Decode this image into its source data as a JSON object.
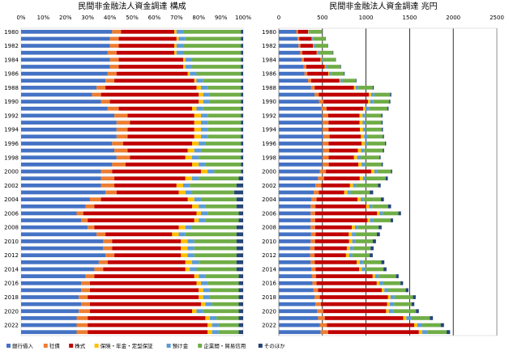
{
  "chart_data": [
    {
      "type": "bar",
      "orientation": "horizontal",
      "stacked": true,
      "percent": true,
      "title": "民間非金融法人資金調達 構成",
      "xlim": [
        0,
        100
      ],
      "xticks": [
        "0%",
        "10%",
        "20%",
        "30%",
        "40%",
        "50%",
        "60%",
        "70%",
        "80%",
        "90%",
        "100%"
      ],
      "grid": false,
      "legend": "bottom",
      "categories": [
        "1980",
        "1981",
        "1982",
        "1983",
        "1984",
        "1985",
        "1986",
        "1987",
        "1988",
        "1989",
        "1990",
        "1991",
        "1992",
        "1993",
        "1994",
        "1995",
        "1996",
        "1997",
        "1998",
        "1999",
        "2000",
        "2001",
        "2002",
        "2003",
        "2004",
        "2005",
        "2006",
        "2007",
        "2008",
        "2009",
        "2010",
        "2011",
        "2012",
        "2013",
        "2014",
        "2015",
        "2016",
        "2017",
        "2018",
        "2019",
        "2020",
        "2021",
        "2022",
        "2023"
      ],
      "category_labels": [
        "1980",
        "",
        "1982",
        "",
        "1984",
        "",
        "1986",
        "",
        "1988",
        "",
        "1990",
        "",
        "1992",
        "",
        "1994",
        "",
        "1996",
        "",
        "1998",
        "",
        "2000",
        "",
        "2002",
        "",
        "2004",
        "",
        "2006",
        "",
        "2008",
        "",
        "2010",
        "",
        "2012",
        "",
        "2014",
        "",
        "2016",
        "",
        "2018",
        "",
        "2020",
        "",
        "2022",
        ""
      ],
      "series": [
        {
          "name": "銀行借入",
          "values": [
            41,
            40,
            40,
            39,
            40,
            40,
            39,
            38,
            34,
            32,
            36,
            39,
            42,
            43,
            43,
            43,
            41,
            42,
            43,
            41,
            36,
            36,
            36,
            38,
            31,
            29,
            25,
            27,
            30,
            34,
            37,
            37,
            38,
            35,
            33,
            29,
            27,
            27,
            26,
            27,
            26,
            25,
            25,
            25
          ]
        },
        {
          "name": "社債",
          "values": [
            4,
            4,
            4,
            4,
            4,
            4,
            4,
            4,
            4,
            4,
            4,
            5,
            6,
            6,
            5,
            5,
            5,
            6,
            6,
            6,
            5,
            6,
            6,
            5,
            5,
            4,
            3,
            3,
            3,
            4,
            4,
            4,
            4,
            4,
            4,
            4,
            4,
            4,
            4,
            4,
            5,
            5,
            5,
            5
          ]
        },
        {
          "name": "株式",
          "values": [
            24,
            26,
            25,
            26,
            29,
            29,
            32,
            36,
            41,
            44,
            40,
            33,
            30,
            29,
            30,
            30,
            31,
            27,
            25,
            30,
            40,
            32,
            28,
            28,
            39,
            44,
            51,
            48,
            38,
            30,
            31,
            31,
            30,
            35,
            37,
            45,
            48,
            49,
            50,
            50,
            46,
            53,
            54,
            54
          ]
        },
        {
          "name": "保険・年金・定型保証",
          "values": [
            1,
            1,
            1,
            1,
            1,
            1,
            1,
            1,
            2,
            2,
            2,
            2,
            3,
            3,
            3,
            3,
            3,
            3,
            3,
            3,
            3,
            3,
            3,
            3,
            3,
            3,
            2,
            2,
            3,
            3,
            3,
            3,
            3,
            3,
            2,
            2,
            2,
            2,
            2,
            2,
            2,
            2,
            2,
            2
          ]
        },
        {
          "name": "預け金",
          "values": [
            3,
            3,
            3,
            3,
            3,
            3,
            3,
            3,
            3,
            3,
            3,
            3,
            3,
            3,
            3,
            3,
            3,
            3,
            3,
            3,
            3,
            3,
            3,
            3,
            3,
            3,
            3,
            3,
            3,
            3,
            3,
            3,
            3,
            3,
            3,
            3,
            3,
            3,
            3,
            3,
            3,
            3,
            3,
            3
          ]
        },
        {
          "name": "企業間・貿易信用",
          "values": [
            26,
            25,
            26,
            26,
            22,
            22,
            20,
            17,
            15,
            14,
            14,
            17,
            15,
            15,
            15,
            15,
            16,
            18,
            19,
            16,
            12,
            18,
            21,
            19,
            16,
            14,
            14,
            15,
            20,
            23,
            19,
            19,
            19,
            17,
            18,
            15,
            14,
            13,
            13,
            12,
            16,
            10,
            9,
            9
          ]
        },
        {
          "name": "そのほか",
          "values": [
            1,
            1,
            1,
            1,
            1,
            1,
            1,
            1,
            1,
            1,
            1,
            1,
            1,
            1,
            1,
            1,
            1,
            1,
            1,
            1,
            1,
            2,
            3,
            4,
            3,
            3,
            2,
            2,
            3,
            3,
            3,
            3,
            3,
            3,
            3,
            2,
            2,
            2,
            2,
            2,
            2,
            2,
            2,
            2
          ]
        }
      ]
    },
    {
      "type": "bar",
      "orientation": "horizontal",
      "stacked": true,
      "title": "民間非金融法人資金調達 兆円",
      "xlim": [
        0,
        2500
      ],
      "xticks": [
        "0",
        "500",
        "1000",
        "1500",
        "2000",
        "2500"
      ],
      "grid": true,
      "legend": "bottom",
      "categories": [
        "1980",
        "1981",
        "1982",
        "1983",
        "1984",
        "1985",
        "1986",
        "1987",
        "1988",
        "1989",
        "1990",
        "1991",
        "1992",
        "1993",
        "1994",
        "1995",
        "1996",
        "1997",
        "1998",
        "1999",
        "2000",
        "2001",
        "2002",
        "2003",
        "2004",
        "2005",
        "2006",
        "2007",
        "2008",
        "2009",
        "2010",
        "2011",
        "2012",
        "2013",
        "2014",
        "2015",
        "2016",
        "2017",
        "2018",
        "2019",
        "2020",
        "2021",
        "2022",
        "2023"
      ],
      "category_labels": [
        "1980",
        "",
        "1982",
        "",
        "1984",
        "",
        "1986",
        "",
        "1988",
        "",
        "1990",
        "",
        "1992",
        "",
        "1994",
        "",
        "1996",
        "",
        "1998",
        "",
        "2000",
        "",
        "2002",
        "",
        "2004",
        "",
        "2006",
        "",
        "2008",
        "",
        "2010",
        "",
        "2012",
        "",
        "2014",
        "",
        "2016",
        "",
        "2018",
        "",
        "2020",
        "",
        "2022",
        ""
      ],
      "series": [
        {
          "name": "銀行借入",
          "values": [
            200,
            215,
            225,
            245,
            260,
            285,
            295,
            335,
            370,
            410,
            460,
            490,
            500,
            500,
            500,
            510,
            500,
            505,
            500,
            500,
            470,
            450,
            420,
            400,
            375,
            365,
            365,
            365,
            365,
            370,
            365,
            360,
            360,
            365,
            375,
            380,
            385,
            395,
            410,
            420,
            440,
            450,
            470,
            480
          ]
        },
        {
          "name": "社債",
          "values": [
            20,
            22,
            23,
            25,
            28,
            30,
            32,
            36,
            42,
            48,
            52,
            58,
            65,
            70,
            70,
            72,
            70,
            72,
            72,
            73,
            70,
            68,
            66,
            60,
            58,
            55,
            52,
            52,
            52,
            52,
            51,
            50,
            50,
            48,
            47,
            46,
            48,
            55,
            60,
            62,
            70,
            78,
            82,
            86
          ]
        },
        {
          "name": "株式",
          "values": [
            115,
            140,
            145,
            165,
            190,
            210,
            240,
            325,
            450,
            575,
            510,
            420,
            360,
            355,
            360,
            360,
            380,
            330,
            290,
            340,
            520,
            410,
            330,
            290,
            470,
            580,
            710,
            600,
            420,
            380,
            390,
            370,
            360,
            480,
            500,
            650,
            690,
            730,
            780,
            760,
            720,
            900,
            1000,
            1040
          ]
        },
        {
          "name": "保険・年金・定型保証",
          "values": [
            5,
            5,
            5,
            6,
            6,
            7,
            8,
            9,
            20,
            25,
            25,
            26,
            35,
            36,
            35,
            35,
            36,
            36,
            36,
            36,
            36,
            36,
            36,
            36,
            36,
            36,
            28,
            27,
            36,
            36,
            36,
            36,
            36,
            36,
            28,
            28,
            30,
            30,
            30,
            30,
            32,
            34,
            36,
            38
          ]
        },
        {
          "name": "預け金",
          "values": [
            15,
            16,
            17,
            18,
            19,
            20,
            23,
            27,
            30,
            38,
            38,
            40,
            36,
            36,
            36,
            36,
            36,
            36,
            36,
            36,
            36,
            36,
            36,
            36,
            36,
            36,
            36,
            38,
            36,
            36,
            36,
            36,
            36,
            36,
            40,
            40,
            42,
            45,
            48,
            50,
            50,
            54,
            58,
            60
          ]
        },
        {
          "name": "企業間・貿易信用",
          "values": [
            130,
            135,
            145,
            160,
            145,
            155,
            150,
            150,
            165,
            180,
            180,
            210,
            180,
            180,
            180,
            180,
            195,
            215,
            220,
            195,
            155,
            225,
            250,
            220,
            195,
            180,
            180,
            200,
            235,
            250,
            200,
            200,
            200,
            210,
            210,
            200,
            200,
            200,
            210,
            200,
            260,
            215,
            210,
            220
          ]
        },
        {
          "name": "そのほか",
          "values": [
            5,
            5,
            5,
            6,
            6,
            6,
            7,
            8,
            12,
            14,
            14,
            14,
            13,
            13,
            13,
            13,
            13,
            13,
            13,
            13,
            13,
            25,
            30,
            40,
            35,
            35,
            30,
            28,
            35,
            35,
            36,
            35,
            35,
            35,
            35,
            30,
            30,
            32,
            32,
            32,
            34,
            36,
            38,
            40
          ]
        }
      ]
    }
  ],
  "colors": {
    "銀行借入": "#4472c4",
    "社債": "#ed7d31",
    "株式": "#c00000",
    "保険・年金・定型保証": "#ffc000",
    "預け金": "#5b9bd5",
    "企業間・貿易信用": "#70ad47",
    "そのほか": "#264478"
  }
}
